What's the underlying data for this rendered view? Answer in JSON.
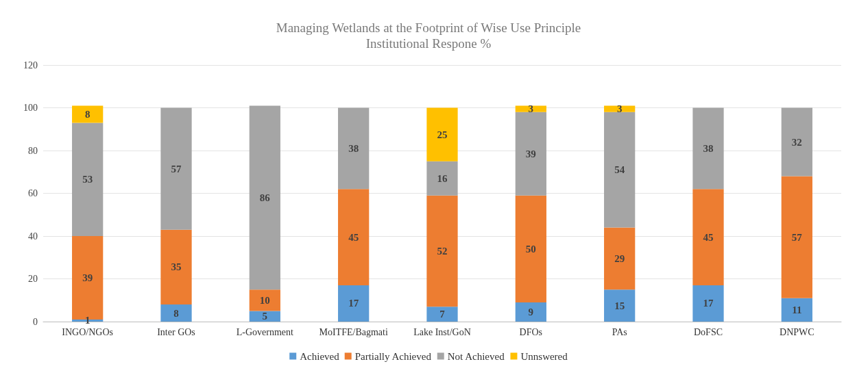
{
  "chart_data": {
    "type": "bar",
    "title": "Managing Wetlands at the Footprint of Wise Use Principle",
    "subtitle": "Institutional Respone %",
    "categories": [
      "INGO/NGOs",
      "Inter GOs",
      "L-Government",
      "MoITFE/Bagmati",
      "Lake Inst/GoN",
      "DFOs",
      "PAs",
      "DoFSC",
      "DNPWC"
    ],
    "stacked": true,
    "data_labels": true,
    "grid": "y",
    "legend": "bottom",
    "ylim": [
      0,
      120
    ],
    "yticks": [
      0,
      20,
      40,
      60,
      80,
      100,
      120
    ],
    "series": [
      {
        "name": "Achieved",
        "color": "#5b9bd5",
        "values": [
          1,
          8,
          5,
          17,
          7,
          9,
          15,
          17,
          11
        ]
      },
      {
        "name": "Partially Achieved",
        "color": "#ed7d31",
        "values": [
          39,
          35,
          10,
          45,
          52,
          50,
          29,
          45,
          57
        ]
      },
      {
        "name": "Not Achieved",
        "color": "#a5a5a5",
        "values": [
          53,
          57,
          86,
          38,
          16,
          39,
          54,
          38,
          32
        ]
      },
      {
        "name": "Unnswered",
        "color": "#ffc000",
        "values": [
          8,
          null,
          null,
          null,
          25,
          3,
          3,
          null,
          null
        ]
      }
    ]
  }
}
